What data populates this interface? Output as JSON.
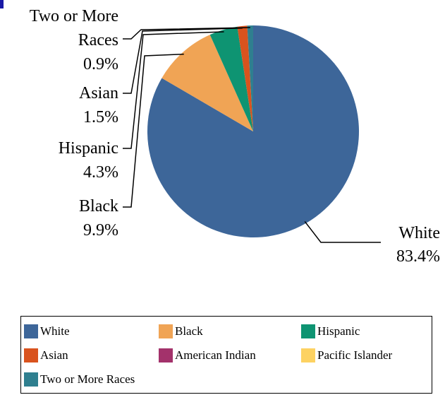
{
  "chart_data": {
    "type": "pie",
    "title": "",
    "categories": [
      "White",
      "Black",
      "Hispanic",
      "Asian",
      "American Indian",
      "Pacific Islander",
      "Two or More Races"
    ],
    "values": [
      83.4,
      9.9,
      4.3,
      1.5,
      0.0,
      0.0,
      0.9
    ],
    "value_labels": [
      "83.4%",
      "9.9%",
      "4.3%",
      "1.5%",
      "",
      "",
      "0.9%"
    ],
    "colors": [
      "#3d6699",
      "#f0a455",
      "#0e9472",
      "#d9531e",
      "#a3326b",
      "#fdd262",
      "#2f7f8f"
    ],
    "slice_labels": {
      "white": {
        "name": "White",
        "value": "83.4%"
      },
      "black": {
        "name": "Black",
        "value": "9.9%"
      },
      "hispanic": {
        "name": "Hispanic",
        "value": "4.3%"
      },
      "asian": {
        "name": "Asian",
        "value": "1.5%"
      },
      "two_or_more": {
        "name_line1": "Two or More",
        "name_line2": "Races",
        "value": "0.9%"
      }
    },
    "legend": {
      "position": "bottom",
      "entries": [
        "White",
        "Black",
        "Hispanic",
        "Asian",
        "American Indian",
        "Pacific Islander",
        "Two or More Races"
      ]
    }
  }
}
